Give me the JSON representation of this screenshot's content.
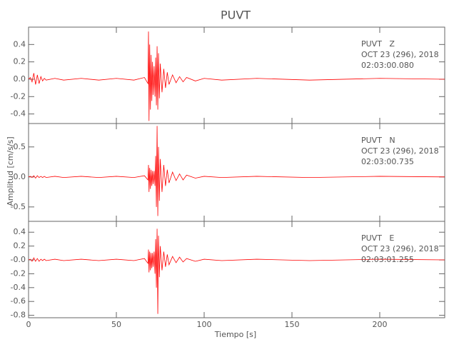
{
  "title": "PUVT",
  "y_label": "Amplitud [cm/s/s]",
  "x_label": "Tiempo [s]",
  "chart_data": [
    {
      "type": "line",
      "color": "#ff0000",
      "annotations": [
        "PUVT   Z",
        "OCT 23 (296), 2018",
        "02:03:00.080"
      ],
      "x": [
        0,
        1,
        2,
        3,
        4,
        5,
        6,
        7,
        8,
        9,
        10,
        15,
        20,
        30,
        40,
        50,
        60,
        66,
        68,
        68.3,
        68.6,
        69,
        69.4,
        69.8,
        70.2,
        70.6,
        71,
        71.5,
        72,
        72.4,
        72.8,
        73.2,
        73.6,
        74,
        74.5,
        75,
        76,
        77,
        78,
        79,
        80,
        82,
        84,
        86,
        88,
        90,
        95,
        100,
        110,
        130,
        160,
        200,
        237
      ],
      "values": [
        0,
        0.02,
        -0.03,
        0.07,
        -0.06,
        0.05,
        -0.05,
        0.03,
        -0.02,
        0.01,
        -0.01,
        0.01,
        -0.01,
        0.01,
        -0.01,
        0.01,
        -0.01,
        0.02,
        -0.05,
        0.55,
        -0.48,
        0.4,
        -0.35,
        0.28,
        -0.25,
        0.2,
        -0.18,
        0.15,
        -0.2,
        0.25,
        -0.3,
        0.38,
        -0.35,
        0.3,
        -0.22,
        0.18,
        -0.15,
        0.12,
        -0.1,
        0.08,
        -0.06,
        0.05,
        -0.04,
        0.03,
        -0.03,
        0.02,
        -0.02,
        0.01,
        -0.01,
        0.01,
        -0.01,
        0.01,
        0
      ],
      "xlim": [
        0,
        237
      ],
      "ylim": [
        -0.51,
        0.6
      ],
      "yticks": [
        {
          "value": -0.4,
          "label": "-0.4"
        },
        {
          "value": -0.2,
          "label": "-0.2"
        },
        {
          "value": 0,
          "label": "0.0"
        },
        0.2,
        0.4
      ]
    },
    {
      "type": "line",
      "color": "#ff0000",
      "annotations": [
        "PUVT   N",
        "OCT 23 (296), 2018",
        "02:03:00.735"
      ],
      "x": [
        0,
        1,
        2,
        3,
        4,
        5,
        6,
        7,
        8,
        9,
        10,
        15,
        20,
        30,
        40,
        50,
        60,
        66,
        68,
        68.3,
        68.6,
        69,
        69.4,
        69.8,
        70.2,
        70.6,
        71,
        71.5,
        72,
        72.4,
        72.8,
        73.2,
        73.6,
        74,
        74.5,
        75,
        76,
        77,
        78,
        79,
        80,
        82,
        84,
        86,
        88,
        90,
        95,
        100,
        110,
        130,
        160,
        200,
        237
      ],
      "values": [
        0,
        0.01,
        -0.01,
        0.02,
        -0.02,
        0.02,
        -0.01,
        0.01,
        -0.01,
        0.01,
        -0.01,
        0.01,
        -0.01,
        0.01,
        -0.01,
        0.01,
        -0.01,
        0.02,
        -0.05,
        0.2,
        -0.25,
        0.15,
        -0.2,
        0.12,
        -0.15,
        0.1,
        -0.12,
        0.1,
        -0.15,
        0.35,
        -0.5,
        0.85,
        -0.65,
        0.5,
        -0.4,
        0.3,
        -0.25,
        0.2,
        -0.15,
        0.12,
        -0.1,
        0.08,
        -0.06,
        0.05,
        -0.05,
        0.03,
        -0.02,
        0.01,
        -0.01,
        0.01,
        -0.01,
        0.01,
        0
      ],
      "xlim": [
        0,
        237
      ],
      "ylim": [
        -0.74,
        0.89
      ],
      "yticks": [
        -0.5,
        {
          "value": 0,
          "label": "0.0"
        },
        0.5
      ]
    },
    {
      "type": "line",
      "color": "#ff0000",
      "annotations": [
        "PUVT   E",
        "OCT 23 (296), 2018",
        "02:03:01.255"
      ],
      "x": [
        0,
        1,
        2,
        3,
        4,
        5,
        6,
        7,
        8,
        9,
        10,
        15,
        20,
        30,
        40,
        50,
        60,
        66,
        68,
        68.3,
        68.6,
        69,
        69.4,
        69.8,
        70.2,
        70.6,
        71,
        71.5,
        72,
        72.4,
        72.8,
        73.2,
        73.6,
        74,
        74.5,
        75,
        76,
        77,
        78,
        79,
        80,
        82,
        84,
        86,
        88,
        90,
        95,
        100,
        110,
        130,
        160,
        200,
        237
      ],
      "values": [
        0,
        0.01,
        -0.02,
        0.03,
        -0.02,
        0.02,
        -0.02,
        0.01,
        -0.01,
        0.01,
        -0.01,
        0.01,
        -0.01,
        0.01,
        -0.01,
        0.01,
        -0.01,
        0.02,
        -0.05,
        0.15,
        -0.18,
        0.12,
        -0.15,
        0.1,
        -0.12,
        0.1,
        -0.1,
        0.12,
        -0.2,
        0.3,
        -0.4,
        0.45,
        -0.78,
        0.35,
        -0.25,
        0.2,
        -0.15,
        0.12,
        -0.1,
        0.08,
        -0.07,
        0.05,
        -0.04,
        0.04,
        -0.03,
        0.02,
        -0.02,
        0.01,
        -0.01,
        0.01,
        -0.01,
        0.01,
        0
      ],
      "xlim": [
        0,
        237
      ],
      "ylim": [
        -0.835,
        0.557
      ],
      "yticks": [
        {
          "value": -0.8,
          "label": "-0.8"
        },
        {
          "value": -0.6,
          "label": "-0.6"
        },
        {
          "value": -0.4,
          "label": "-0.4"
        },
        {
          "value": -0.2,
          "label": "-0.2"
        },
        {
          "value": 0,
          "label": "-0.0"
        },
        0.2,
        0.4
      ],
      "xticks": [
        0,
        50,
        100,
        150,
        200
      ]
    }
  ]
}
